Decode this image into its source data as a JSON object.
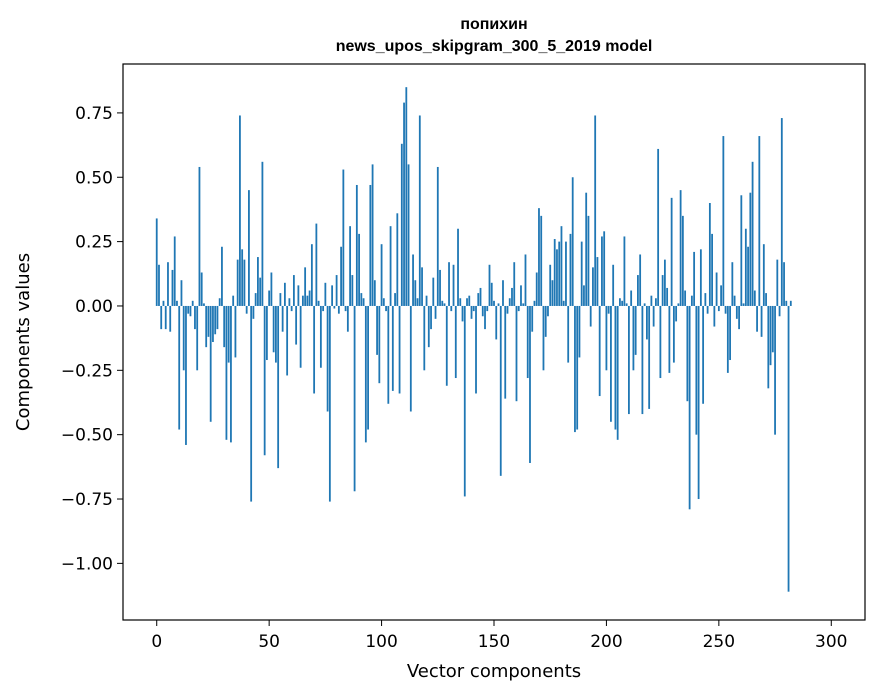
{
  "chart_data": {
    "type": "bar",
    "title": "попихин",
    "subtitle": "news_upos_skipgram_300_5_2019 model",
    "xlabel": "Vector components",
    "ylabel": "Components values",
    "xlim": [
      -15,
      315
    ],
    "ylim": [
      -1.22,
      0.94
    ],
    "x_ticks": [
      0,
      50,
      100,
      150,
      200,
      250,
      300
    ],
    "x_tick_labels": [
      "0",
      "50",
      "100",
      "150",
      "200",
      "250",
      "300"
    ],
    "y_ticks": [
      0.75,
      0.5,
      0.25,
      0.0,
      -0.25,
      -0.5,
      -0.75,
      -1.0
    ],
    "y_tick_labels": [
      "0.75",
      "0.50",
      "0.25",
      "0.00",
      "−0.25",
      "−0.50",
      "−0.75",
      "−1.00"
    ],
    "bar_color": "#1f77b4",
    "values": [
      0.34,
      0.16,
      -0.09,
      0.02,
      -0.09,
      0.17,
      -0.1,
      0.14,
      0.27,
      0.02,
      -0.48,
      0.1,
      -0.25,
      -0.54,
      -0.03,
      -0.04,
      0.02,
      -0.09,
      -0.25,
      0.54,
      0.13,
      0.01,
      -0.16,
      -0.12,
      -0.45,
      -0.14,
      -0.11,
      -0.09,
      0.03,
      0.23,
      -0.16,
      -0.52,
      -0.22,
      -0.53,
      0.04,
      -0.2,
      0.18,
      0.74,
      0.22,
      0.18,
      -0.03,
      0.45,
      -0.76,
      -0.05,
      0.05,
      0.19,
      0.11,
      0.56,
      -0.58,
      -0.21,
      0.06,
      0.13,
      -0.18,
      -0.22,
      -0.63,
      0.05,
      -0.1,
      0.09,
      -0.27,
      0.03,
      -0.02,
      0.12,
      -0.15,
      0.08,
      -0.24,
      0.04,
      0.15,
      0.04,
      0.06,
      0.24,
      -0.34,
      0.32,
      0.02,
      -0.24,
      -0.02,
      0.09,
      -0.41,
      -0.76,
      0.08,
      -0.01,
      0.12,
      -0.03,
      0.23,
      0.53,
      -0.02,
      -0.1,
      0.31,
      0.12,
      -0.72,
      0.47,
      0.28,
      0.05,
      0.03,
      -0.53,
      -0.48,
      0.47,
      0.55,
      0.1,
      -0.19,
      -0.3,
      0.24,
      0.03,
      -0.02,
      -0.38,
      0.31,
      -0.33,
      0.05,
      0.36,
      -0.34,
      0.63,
      0.79,
      0.85,
      0.55,
      -0.41,
      0.2,
      0.1,
      0.03,
      0.74,
      0.15,
      -0.25,
      0.04,
      -0.16,
      -0.09,
      0.11,
      -0.05,
      0.54,
      0.14,
      0.02,
      0.01,
      -0.31,
      0.17,
      -0.02,
      0.16,
      -0.28,
      0.3,
      0.03,
      -0.06,
      -0.74,
      0.03,
      0.04,
      -0.05,
      -0.02,
      -0.34,
      0.05,
      0.07,
      -0.04,
      -0.09,
      -0.02,
      0.16,
      0.09,
      0.02,
      -0.13,
      0.01,
      -0.66,
      0.1,
      -0.36,
      -0.03,
      0.03,
      0.07,
      0.17,
      -0.37,
      -0.02,
      0.08,
      0.01,
      0.2,
      -0.28,
      -0.61,
      -0.1,
      0.02,
      0.13,
      0.38,
      0.35,
      -0.25,
      -0.12,
      -0.04,
      0.16,
      0.1,
      0.26,
      0.22,
      0.25,
      0.31,
      0.02,
      0.25,
      -0.22,
      0.28,
      0.5,
      -0.49,
      -0.48,
      -0.2,
      0.25,
      0.08,
      0.44,
      0.35,
      -0.08,
      0.15,
      0.74,
      0.19,
      -0.35,
      0.27,
      0.29,
      -0.25,
      -0.03,
      -0.45,
      0.16,
      -0.48,
      -0.52,
      0.03,
      0.02,
      0.27,
      0.01,
      -0.42,
      0.06,
      -0.25,
      -0.19,
      0.12,
      0.2,
      -0.42,
      0.01,
      -0.13,
      -0.4,
      0.04,
      -0.08,
      0.03,
      0.61,
      -0.28,
      0.12,
      0.18,
      0.07,
      -0.26,
      0.42,
      -0.22,
      -0.06,
      0.01,
      0.45,
      0.35,
      0.06,
      -0.37,
      -0.79,
      0.04,
      0.21,
      -0.5,
      -0.75,
      0.22,
      -0.38,
      0.05,
      -0.03,
      0.4,
      0.28,
      -0.08,
      0.13,
      -0.02,
      0.08,
      0.66,
      -0.03,
      -0.26,
      -0.21,
      0.17,
      0.04,
      -0.05,
      -0.09,
      0.43,
      0.01,
      0.3,
      0.23,
      0.44,
      0.56,
      0.06,
      -0.1,
      0.66,
      -0.12,
      0.24,
      0.05,
      -0.32,
      -0.23,
      -0.18,
      -0.5,
      0.18,
      -0.04,
      0.73,
      0.17,
      0.02,
      -1.11,
      0.02
    ]
  }
}
